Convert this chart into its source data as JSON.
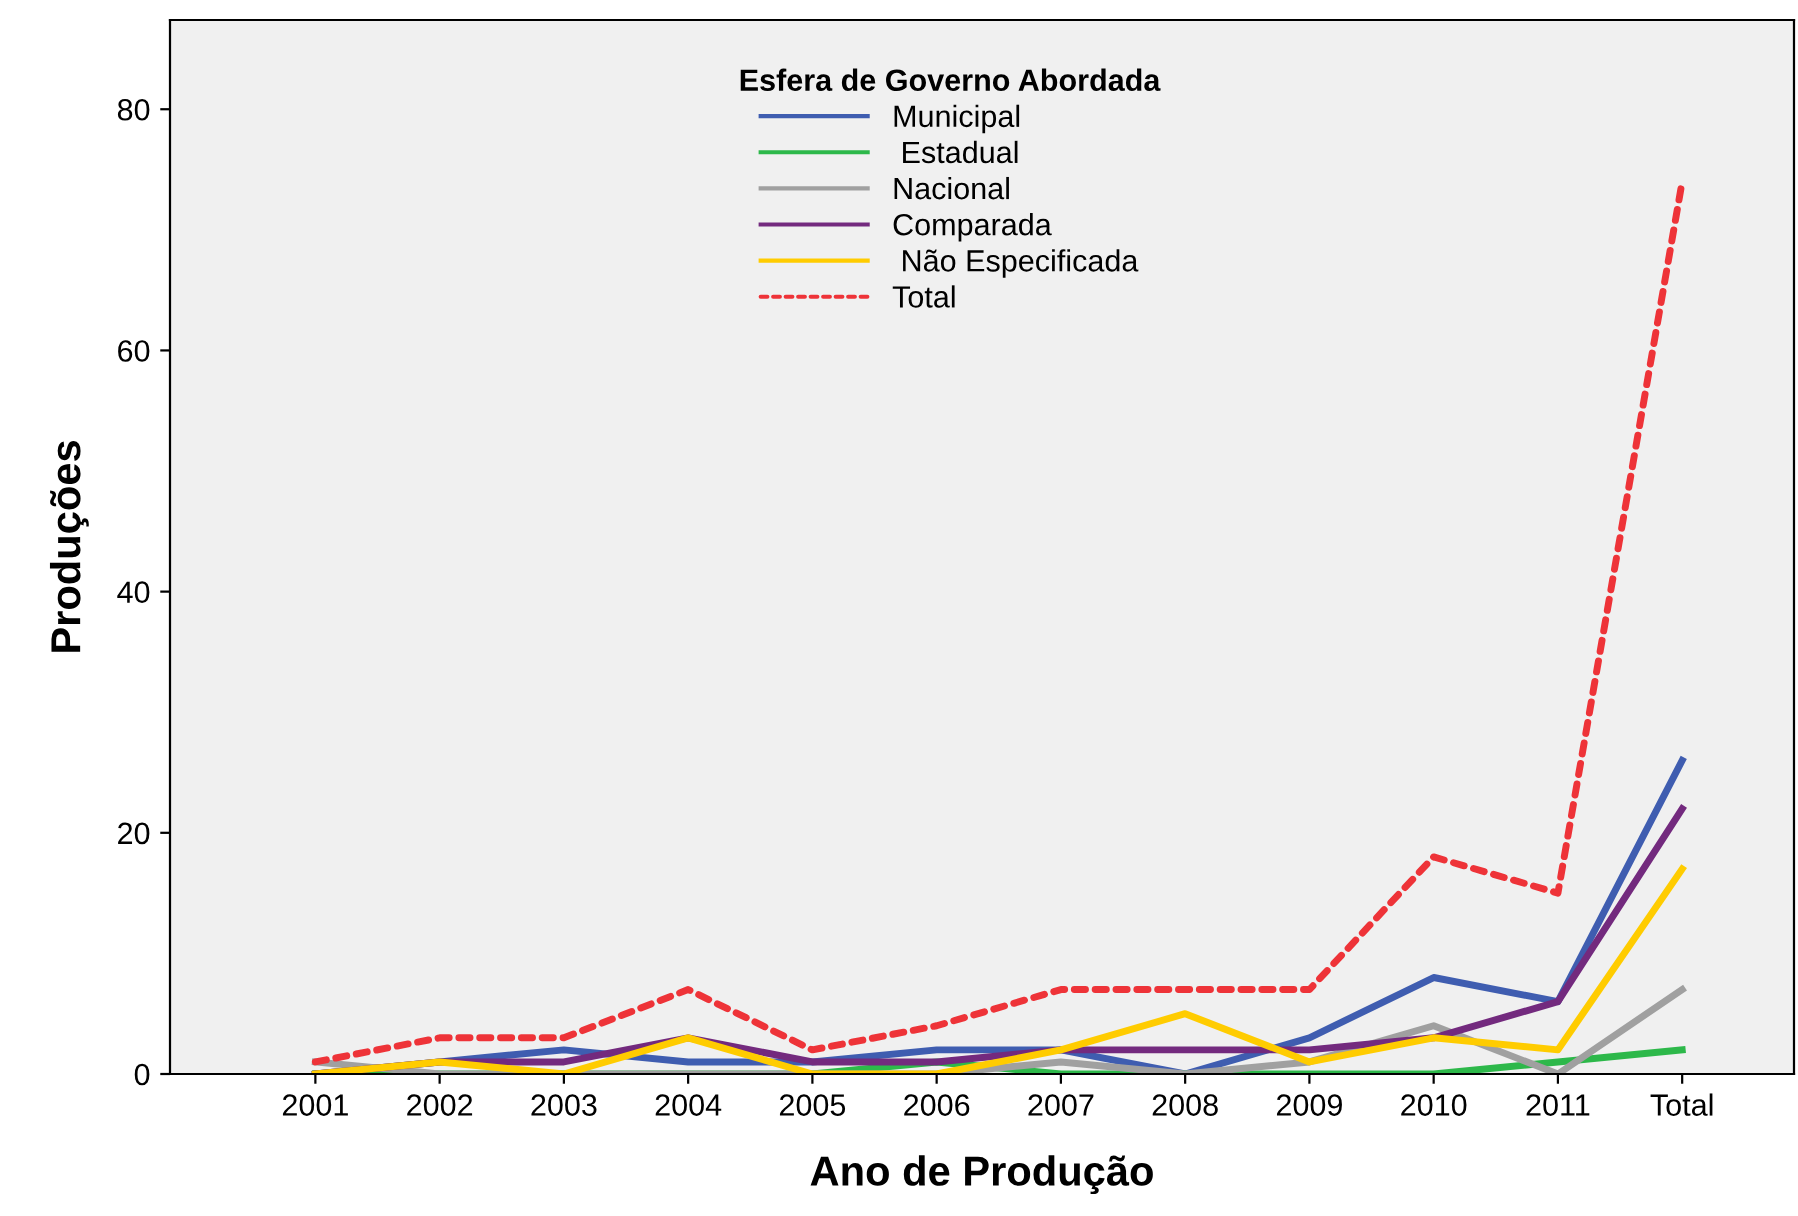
{
  "chart_data": {
    "type": "line",
    "xlabel": "Ano de Produção",
    "ylabel": "Produções",
    "legend_title": "Esfera de Governo Abordada",
    "categories": [
      "2001",
      "2002",
      "2003",
      "2004",
      "2005",
      "2006",
      "2007",
      "2008",
      "2009",
      "2010",
      "2011",
      "Total"
    ],
    "series": [
      {
        "name": "Municipal",
        "color": "#3f5db0",
        "values": [
          0,
          1,
          2,
          1,
          1,
          2,
          2,
          0,
          3,
          8,
          6,
          26
        ]
      },
      {
        "name": " Estadual",
        "color": "#2db84a",
        "values": [
          0,
          0,
          0,
          0,
          0,
          1,
          0,
          0,
          0,
          0,
          1,
          2
        ]
      },
      {
        "name": "Nacional",
        "color": "#a0a0a0",
        "values": [
          1,
          0,
          0,
          0,
          0,
          0,
          1,
          0,
          1,
          4,
          0,
          7
        ]
      },
      {
        "name": "Comparada",
        "color": "#732a7e",
        "values": [
          0,
          1,
          1,
          3,
          1,
          1,
          2,
          2,
          2,
          3,
          6,
          22
        ]
      },
      {
        "name": " Não Especificada",
        "color": "#ffcc00",
        "values": [
          0,
          1,
          0,
          3,
          0,
          0,
          2,
          5,
          1,
          3,
          2,
          17
        ]
      },
      {
        "name": "Total",
        "color": "#ee3338",
        "line_style": "dashed",
        "values": [
          1,
          3,
          3,
          7,
          2,
          4,
          7,
          7,
          7,
          18,
          15,
          74
        ]
      }
    ],
    "ylim": [
      0,
      87.4
    ],
    "yticks": [
      0,
      20,
      40,
      60,
      80
    ],
    "grid": false,
    "legend": "top",
    "line_style": "solid",
    "marker": "none"
  }
}
